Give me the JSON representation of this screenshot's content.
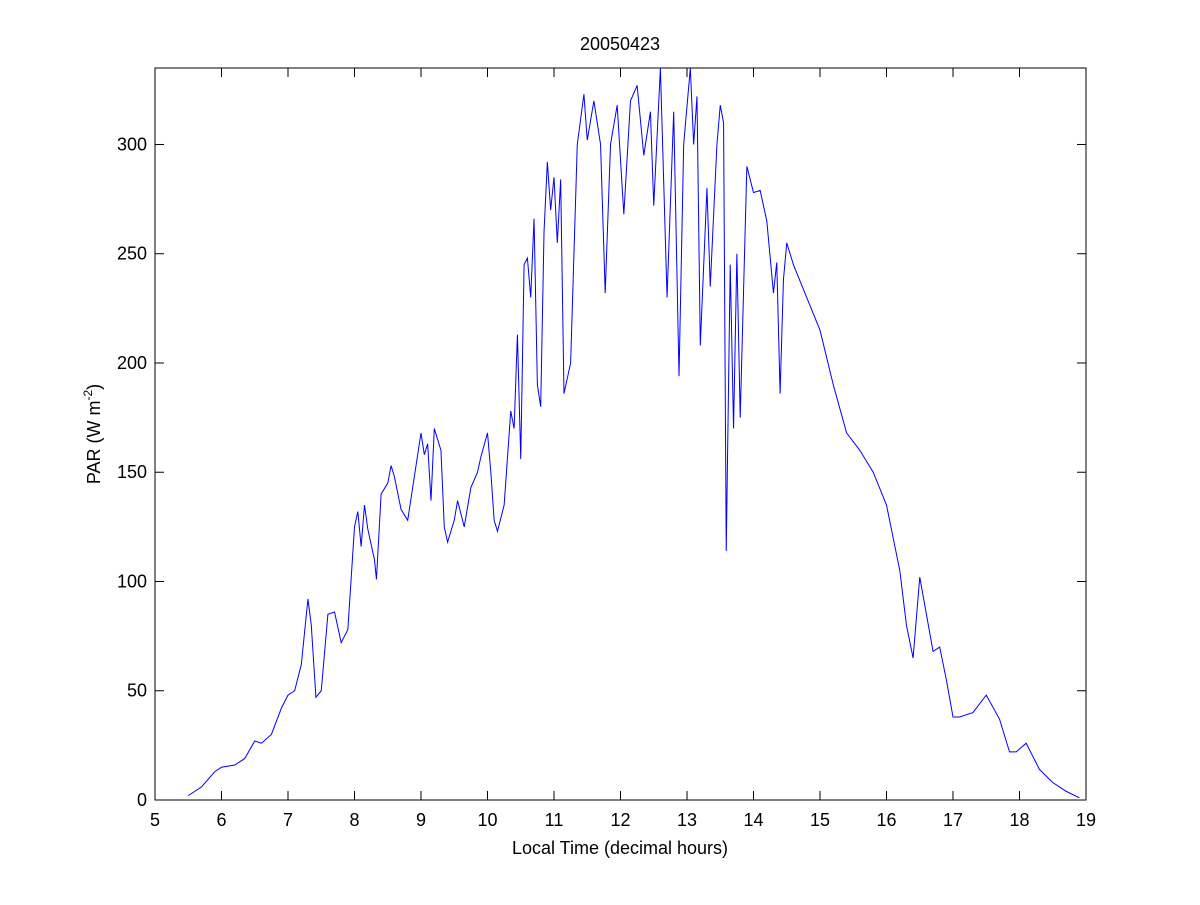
{
  "chart_data": {
    "type": "line",
    "title": "20050423",
    "xlabel": "Local Time (decimal hours)",
    "ylabel": [
      "PAR (W m",
      "-2",
      ")"
    ],
    "xlim": [
      5,
      19
    ],
    "xticks": [
      5,
      6,
      7,
      8,
      9,
      10,
      11,
      12,
      13,
      14,
      15,
      16,
      17,
      18,
      19
    ],
    "ylim": [
      0,
      335
    ],
    "yticks": [
      0,
      50,
      100,
      150,
      200,
      250,
      300
    ],
    "grid": false,
    "series": [
      {
        "color": "#0000ff",
        "x": [
          5.5,
          5.7,
          5.9,
          6.0,
          6.2,
          6.35,
          6.5,
          6.6,
          6.75,
          6.9,
          7.0,
          7.1,
          7.2,
          7.3,
          7.35,
          7.42,
          7.5,
          7.6,
          7.7,
          7.8,
          7.9,
          8.0,
          8.05,
          8.1,
          8.15,
          8.2,
          8.3,
          8.33,
          8.4,
          8.5,
          8.55,
          8.6,
          8.7,
          8.8,
          8.9,
          9.0,
          9.05,
          9.1,
          9.15,
          9.2,
          9.3,
          9.35,
          9.4,
          9.5,
          9.55,
          9.65,
          9.75,
          9.85,
          9.9,
          10.0,
          10.05,
          10.1,
          10.15,
          10.25,
          10.35,
          10.4,
          10.45,
          10.5,
          10.55,
          10.6,
          10.65,
          10.7,
          10.75,
          10.8,
          10.85,
          10.9,
          10.95,
          11.0,
          11.05,
          11.1,
          11.15,
          11.25,
          11.35,
          11.45,
          11.5,
          11.6,
          11.7,
          11.77,
          11.85,
          11.95,
          12.05,
          12.15,
          12.25,
          12.35,
          12.45,
          12.5,
          12.6,
          12.7,
          12.8,
          12.88,
          12.95,
          13.05,
          13.1,
          13.15,
          13.2,
          13.3,
          13.35,
          13.45,
          13.5,
          13.55,
          13.59,
          13.65,
          13.7,
          13.75,
          13.8,
          13.9,
          14.0,
          14.1,
          14.2,
          14.3,
          14.35,
          14.4,
          14.45,
          14.5,
          14.6,
          14.8,
          15.0,
          15.2,
          15.4,
          15.6,
          15.8,
          16.0,
          16.2,
          16.3,
          16.4,
          16.5,
          16.6,
          16.7,
          16.8,
          16.9,
          17.0,
          17.1,
          17.3,
          17.5,
          17.7,
          17.85,
          17.95,
          18.1,
          18.3,
          18.5,
          18.7,
          18.9
        ],
        "values": [
          2,
          6,
          13,
          15,
          16,
          19,
          27,
          26,
          30,
          42,
          48,
          50,
          62,
          92,
          80,
          47,
          50,
          85,
          86,
          72,
          78,
          125,
          132,
          116,
          135,
          124,
          110,
          101,
          140,
          145,
          153,
          148,
          133,
          128,
          148,
          168,
          158,
          163,
          137,
          170,
          160,
          125,
          118,
          128,
          137,
          125,
          143,
          150,
          157,
          168,
          150,
          128,
          123,
          135,
          178,
          170,
          213,
          156,
          245,
          248,
          230,
          266,
          190,
          180,
          260,
          292,
          270,
          285,
          255,
          284,
          186,
          200,
          300,
          323,
          302,
          320,
          300,
          232,
          300,
          318,
          268,
          320,
          327,
          295,
          315,
          272,
          335,
          230,
          315,
          194,
          300,
          335,
          300,
          322,
          208,
          280,
          235,
          300,
          318,
          310,
          114,
          245,
          170,
          250,
          175,
          290,
          278,
          279,
          265,
          232,
          246,
          186,
          238,
          255,
          245,
          230,
          215,
          190,
          168,
          160,
          150,
          135,
          105,
          80,
          65,
          102,
          85,
          68,
          70,
          55,
          38,
          38,
          40,
          48,
          37,
          22,
          22,
          26,
          14,
          8,
          4,
          1
        ]
      }
    ]
  }
}
